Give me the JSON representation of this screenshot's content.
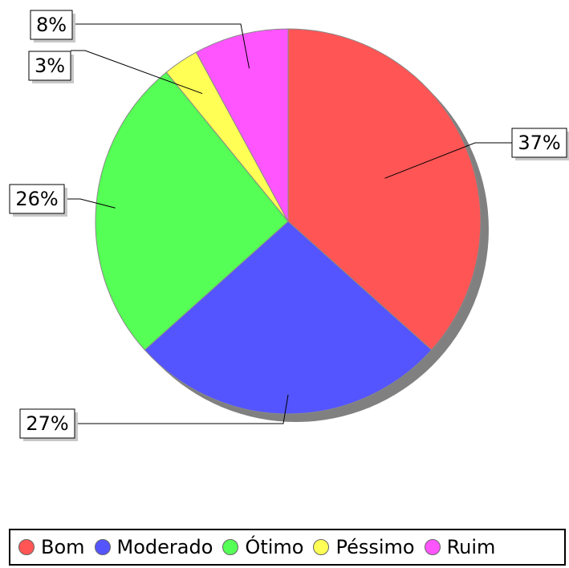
{
  "chart_data": {
    "type": "pie",
    "categories": [
      "Bom",
      "Moderado",
      "Ótimo",
      "Péssimo",
      "Ruim"
    ],
    "values": [
      37,
      27,
      26,
      3,
      8
    ],
    "labels": [
      "37%",
      "27%",
      "26%",
      "3%",
      "8%"
    ],
    "colors": [
      "#ff5555",
      "#5555ff",
      "#55ff55",
      "#ffff55",
      "#ff55ff"
    ],
    "legend": "bottom",
    "shadow": true
  }
}
